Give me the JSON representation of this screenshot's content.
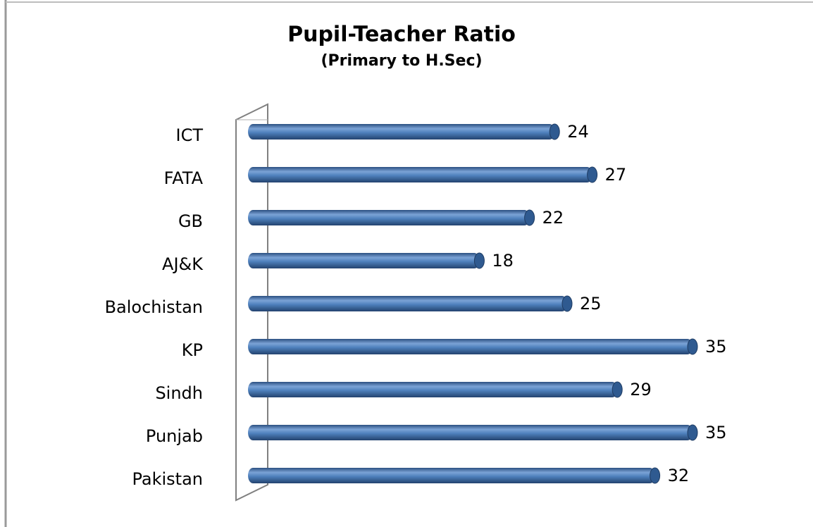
{
  "chart_data": {
    "type": "bar",
    "orientation": "horizontal",
    "title": "Pupil-Teacher Ratio",
    "subtitle": "(Primary to H.Sec)",
    "categories": [
      "ICT",
      "FATA",
      "GB",
      "AJ&K",
      "Balochistan",
      "KP",
      "Sindh",
      "Punjab",
      "Pakistan"
    ],
    "values": [
      24,
      27,
      22,
      18,
      25,
      35,
      29,
      35,
      32
    ],
    "color": "#4f81bd",
    "xlim": [
      0,
      40
    ]
  }
}
